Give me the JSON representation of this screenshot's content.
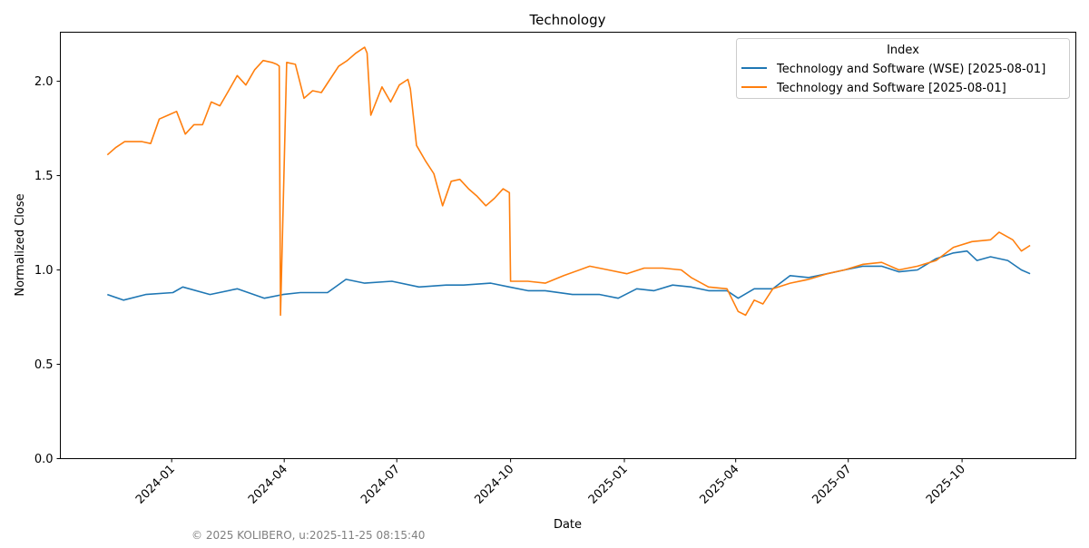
{
  "chart_data": {
    "type": "line",
    "title": "Technology",
    "xlabel": "Date",
    "ylabel": "Normalized Close",
    "xlim": [
      "2023-10-03",
      "2026-01-01"
    ],
    "ylim": [
      0,
      2.26
    ],
    "grid": false,
    "x_ticks": [
      "2024-01",
      "2024-04",
      "2024-07",
      "2024-10",
      "2025-01",
      "2025-04",
      "2025-07",
      "2025-10"
    ],
    "y_ticks": [
      "0.0",
      "0.5",
      "1.0",
      "1.5",
      "2.0"
    ],
    "legend": {
      "title": "Index",
      "placement": "top-right"
    },
    "series": [
      {
        "name": "Technology and Software (WSE) [2025-08-01]",
        "color": "#1f77b4",
        "points": [
          [
            "2023-11-10",
            0.87
          ],
          [
            "2023-11-23",
            0.84
          ],
          [
            "2023-12-11",
            0.87
          ],
          [
            "2024-01-02",
            0.88
          ],
          [
            "2024-01-10",
            0.91
          ],
          [
            "2024-02-01",
            0.87
          ],
          [
            "2024-02-23",
            0.9
          ],
          [
            "2024-03-16",
            0.85
          ],
          [
            "2024-03-31",
            0.87
          ],
          [
            "2024-04-14",
            0.88
          ],
          [
            "2024-05-06",
            0.88
          ],
          [
            "2024-05-21",
            0.95
          ],
          [
            "2024-06-05",
            0.93
          ],
          [
            "2024-06-27",
            0.94
          ],
          [
            "2024-07-19",
            0.91
          ],
          [
            "2024-08-10",
            0.92
          ],
          [
            "2024-08-24",
            0.92
          ],
          [
            "2024-09-15",
            0.93
          ],
          [
            "2024-09-30",
            0.91
          ],
          [
            "2024-10-15",
            0.89
          ],
          [
            "2024-10-29",
            0.89
          ],
          [
            "2024-11-20",
            0.87
          ],
          [
            "2024-12-12",
            0.87
          ],
          [
            "2024-12-27",
            0.85
          ],
          [
            "2025-01-11",
            0.9
          ],
          [
            "2025-01-25",
            0.89
          ],
          [
            "2025-02-09",
            0.92
          ],
          [
            "2025-02-24",
            0.91
          ],
          [
            "2025-03-10",
            0.89
          ],
          [
            "2025-03-25",
            0.89
          ],
          [
            "2025-04-03",
            0.85
          ],
          [
            "2025-04-16",
            0.9
          ],
          [
            "2025-05-01",
            0.9
          ],
          [
            "2025-05-15",
            0.97
          ],
          [
            "2025-05-30",
            0.96
          ],
          [
            "2025-06-14",
            0.98
          ],
          [
            "2025-06-28",
            1.0
          ],
          [
            "2025-07-13",
            1.02
          ],
          [
            "2025-07-28",
            1.02
          ],
          [
            "2025-08-11",
            0.99
          ],
          [
            "2025-08-26",
            1.0
          ],
          [
            "2025-09-10",
            1.06
          ],
          [
            "2025-09-24",
            1.09
          ],
          [
            "2025-10-05",
            1.1
          ],
          [
            "2025-10-13",
            1.05
          ],
          [
            "2025-10-24",
            1.07
          ],
          [
            "2025-11-07",
            1.05
          ],
          [
            "2025-11-18",
            1.0
          ],
          [
            "2025-11-25",
            0.98
          ]
        ]
      },
      {
        "name": "Technology and Software [2025-08-01]",
        "color": "#ff7f0e",
        "points": [
          [
            "2023-11-10",
            1.61
          ],
          [
            "2023-11-17",
            1.65
          ],
          [
            "2023-11-24",
            1.68
          ],
          [
            "2023-12-01",
            1.68
          ],
          [
            "2023-12-08",
            1.68
          ],
          [
            "2023-12-15",
            1.67
          ],
          [
            "2023-12-22",
            1.8
          ],
          [
            "2023-12-29",
            1.82
          ],
          [
            "2024-01-05",
            1.84
          ],
          [
            "2024-01-12",
            1.72
          ],
          [
            "2024-01-19",
            1.77
          ],
          [
            "2024-01-26",
            1.77
          ],
          [
            "2024-02-02",
            1.89
          ],
          [
            "2024-02-09",
            1.87
          ],
          [
            "2024-02-16",
            1.95
          ],
          [
            "2024-02-23",
            2.03
          ],
          [
            "2024-03-01",
            1.98
          ],
          [
            "2024-03-08",
            2.06
          ],
          [
            "2024-03-15",
            2.11
          ],
          [
            "2024-03-22",
            2.1
          ],
          [
            "2024-03-26",
            2.09
          ],
          [
            "2024-03-28",
            2.08
          ],
          [
            "2024-03-29",
            0.76
          ],
          [
            "2024-04-03",
            2.1
          ],
          [
            "2024-04-10",
            2.09
          ],
          [
            "2024-04-17",
            1.91
          ],
          [
            "2024-04-24",
            1.95
          ],
          [
            "2024-05-01",
            1.94
          ],
          [
            "2024-05-08",
            2.01
          ],
          [
            "2024-05-15",
            2.08
          ],
          [
            "2024-05-22",
            2.11
          ],
          [
            "2024-05-29",
            2.15
          ],
          [
            "2024-06-05",
            2.18
          ],
          [
            "2024-06-07",
            2.15
          ],
          [
            "2024-06-10",
            1.82
          ],
          [
            "2024-06-19",
            1.97
          ],
          [
            "2024-06-26",
            1.89
          ],
          [
            "2024-07-03",
            1.98
          ],
          [
            "2024-07-10",
            2.01
          ],
          [
            "2024-07-12",
            1.96
          ],
          [
            "2024-07-17",
            1.66
          ],
          [
            "2024-07-24",
            1.58
          ],
          [
            "2024-07-31",
            1.51
          ],
          [
            "2024-08-07",
            1.34
          ],
          [
            "2024-08-14",
            1.47
          ],
          [
            "2024-08-21",
            1.48
          ],
          [
            "2024-08-28",
            1.43
          ],
          [
            "2024-09-04",
            1.39
          ],
          [
            "2024-09-11",
            1.34
          ],
          [
            "2024-09-18",
            1.38
          ],
          [
            "2024-09-25",
            1.43
          ],
          [
            "2024-09-30",
            1.41
          ],
          [
            "2024-10-01",
            0.94
          ],
          [
            "2024-10-15",
            0.94
          ],
          [
            "2024-10-29",
            0.93
          ],
          [
            "2024-11-13",
            0.97
          ],
          [
            "2024-12-04",
            1.02
          ],
          [
            "2024-12-19",
            1.0
          ],
          [
            "2025-01-03",
            0.98
          ],
          [
            "2025-01-17",
            1.01
          ],
          [
            "2025-02-01",
            1.01
          ],
          [
            "2025-02-16",
            1.0
          ],
          [
            "2025-02-24",
            0.96
          ],
          [
            "2025-03-10",
            0.91
          ],
          [
            "2025-03-25",
            0.9
          ],
          [
            "2025-04-03",
            0.78
          ],
          [
            "2025-04-09",
            0.76
          ],
          [
            "2025-04-16",
            0.84
          ],
          [
            "2025-04-23",
            0.82
          ],
          [
            "2025-05-01",
            0.9
          ],
          [
            "2025-05-15",
            0.93
          ],
          [
            "2025-05-30",
            0.95
          ],
          [
            "2025-06-14",
            0.98
          ],
          [
            "2025-06-28",
            1.0
          ],
          [
            "2025-07-13",
            1.03
          ],
          [
            "2025-07-28",
            1.04
          ],
          [
            "2025-08-11",
            1.0
          ],
          [
            "2025-08-26",
            1.02
          ],
          [
            "2025-09-10",
            1.05
          ],
          [
            "2025-09-24",
            1.12
          ],
          [
            "2025-10-09",
            1.15
          ],
          [
            "2025-10-24",
            1.16
          ],
          [
            "2025-10-31",
            1.2
          ],
          [
            "2025-11-11",
            1.16
          ],
          [
            "2025-11-18",
            1.1
          ],
          [
            "2025-11-25",
            1.13
          ]
        ]
      }
    ]
  },
  "footer": {
    "watermark": "© 2025 KOLIBERO, u:2025-11-25 08:15:40"
  }
}
